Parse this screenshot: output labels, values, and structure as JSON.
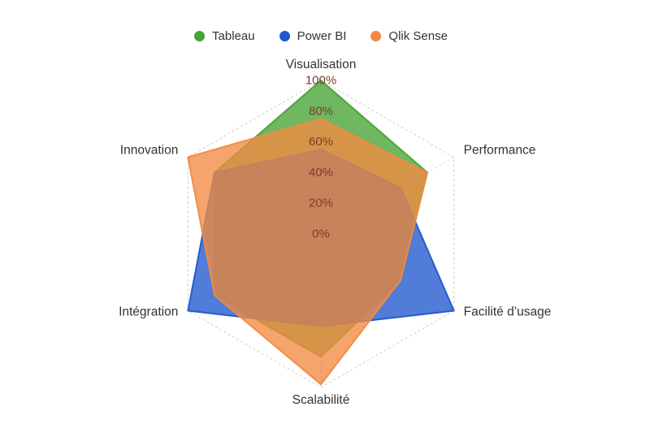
{
  "chart_data": {
    "type": "radar",
    "title": "",
    "axes": [
      "Visualisation",
      "Performance",
      "Facilité d’usage",
      "Scalabilité",
      "Intégration",
      "Innovation"
    ],
    "tick_labels": [
      "0%",
      "20%",
      "40%",
      "60%",
      "80%",
      "100%"
    ],
    "tick_values": [
      0,
      20,
      40,
      60,
      80,
      100
    ],
    "rmin": 0,
    "rmax": 100,
    "series": [
      {
        "name": "Tableau",
        "color": "#47a335",
        "values": [
          100,
          80,
          60,
          80,
          80,
          80
        ]
      },
      {
        "name": "Power BI",
        "color": "#2057cd",
        "values": [
          55,
          60,
          100,
          60,
          100,
          80
        ]
      },
      {
        "name": "Qlik Sense",
        "color": "#f28a41",
        "values": [
          75,
          80,
          60,
          98,
          80,
          100
        ]
      }
    ],
    "legend_position": "top",
    "grid": {
      "style": "dashed",
      "color": "#c9c9c9",
      "spoke_color": "#d4d4d4",
      "rings": [
        100
      ],
      "spokes": true
    },
    "fill_opacity": 0.78
  },
  "colors": {
    "background": "#ffffff",
    "axis_label": "#333333",
    "tick_label": "#7e3b2c"
  }
}
